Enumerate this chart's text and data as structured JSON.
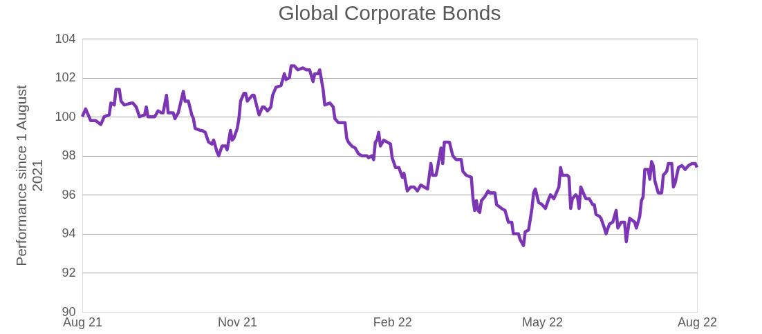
{
  "chart_data": {
    "type": "line",
    "title": "Global Corporate Bonds",
    "ylabel": "Performance since 1 August 2021",
    "x": [
      "2021-08-01",
      "2021-08-03",
      "2021-08-06",
      "2021-08-09",
      "2021-08-12",
      "2021-08-14",
      "2021-08-17",
      "2021-08-18",
      "2021-08-20",
      "2021-08-21",
      "2021-08-23",
      "2021-08-24",
      "2021-08-26",
      "2021-08-30",
      "2021-08-31",
      "2021-09-02",
      "2021-09-04",
      "2021-09-07",
      "2021-09-08",
      "2021-09-09",
      "2021-09-13",
      "2021-09-15",
      "2021-09-17",
      "2021-09-18",
      "2021-09-20",
      "2021-09-21",
      "2021-09-24",
      "2021-09-25",
      "2021-09-27",
      "2021-09-30",
      "2021-10-01",
      "2021-10-03",
      "2021-10-05",
      "2021-10-06",
      "2021-10-07",
      "2021-10-10",
      "2021-10-11",
      "2021-10-13",
      "2021-10-15",
      "2021-10-17",
      "2021-10-18",
      "2021-10-20",
      "2021-10-21",
      "2021-10-23",
      "2021-10-25",
      "2021-10-26",
      "2021-10-28",
      "2021-10-29",
      "2021-10-30",
      "2021-11-01",
      "2021-11-02",
      "2021-11-03",
      "2021-11-05",
      "2021-11-06",
      "2021-11-07",
      "2021-11-09",
      "2021-11-10",
      "2021-11-11",
      "2021-11-13",
      "2021-11-14",
      "2021-11-16",
      "2021-11-17",
      "2021-11-19",
      "2021-11-21",
      "2021-11-22",
      "2021-11-24",
      "2021-11-27",
      "2021-11-29",
      "2021-11-30",
      "2021-12-02",
      "2021-12-03",
      "2021-12-05",
      "2021-12-07",
      "2021-12-10",
      "2021-12-12",
      "2021-12-14",
      "2021-12-16",
      "2021-12-17",
      "2021-12-19",
      "2021-12-20",
      "2021-12-22",
      "2021-12-23",
      "2021-12-26",
      "2021-12-28",
      "2021-12-29",
      "2021-12-31",
      "2022-01-04",
      "2022-01-05",
      "2022-01-06",
      "2022-01-08",
      "2022-01-10",
      "2022-01-12",
      "2022-01-14",
      "2022-01-17",
      "2022-01-18",
      "2022-01-20",
      "2022-01-21",
      "2022-01-22",
      "2022-01-23",
      "2022-01-24",
      "2022-01-25",
      "2022-01-27",
      "2022-01-29",
      "2022-01-31",
      "2022-02-01",
      "2022-02-03",
      "2022-02-05",
      "2022-02-07",
      "2022-02-08",
      "2022-02-10",
      "2022-02-12",
      "2022-02-14",
      "2022-02-16",
      "2022-02-18",
      "2022-02-20",
      "2022-02-22",
      "2022-02-24",
      "2022-02-25",
      "2022-02-27",
      "2022-02-28",
      "2022-03-02",
      "2022-03-03",
      "2022-03-04",
      "2022-03-07",
      "2022-03-09",
      "2022-03-11",
      "2022-03-14",
      "2022-03-15",
      "2022-03-17",
      "2022-03-20",
      "2022-03-21",
      "2022-03-22",
      "2022-03-23",
      "2022-03-24",
      "2022-03-25",
      "2022-03-26",
      "2022-03-28",
      "2022-03-30",
      "2022-03-31",
      "2022-04-03",
      "2022-04-04",
      "2022-04-07",
      "2022-04-09",
      "2022-04-11",
      "2022-04-13",
      "2022-04-14",
      "2022-04-17",
      "2022-04-18",
      "2022-04-20",
      "2022-04-21",
      "2022-04-23",
      "2022-04-25",
      "2022-04-26",
      "2022-04-27",
      "2022-04-29",
      "2022-05-01",
      "2022-05-03",
      "2022-05-05",
      "2022-05-06",
      "2022-05-08",
      "2022-05-10",
      "2022-05-11",
      "2022-05-12",
      "2022-05-13",
      "2022-05-16",
      "2022-05-17",
      "2022-05-18",
      "2022-05-19",
      "2022-05-21",
      "2022-05-22",
      "2022-05-23",
      "2022-05-24",
      "2022-05-26",
      "2022-05-27",
      "2022-05-29",
      "2022-05-31",
      "2022-06-01",
      "2022-06-02",
      "2022-06-04",
      "2022-06-05",
      "2022-06-07",
      "2022-06-08",
      "2022-06-10",
      "2022-06-12",
      "2022-06-14",
      "2022-06-15",
      "2022-06-17",
      "2022-06-19",
      "2022-06-20",
      "2022-06-22",
      "2022-06-25",
      "2022-06-26",
      "2022-06-28",
      "2022-06-29",
      "2022-06-30",
      "2022-07-01",
      "2022-07-03",
      "2022-07-04",
      "2022-07-05",
      "2022-07-06",
      "2022-07-07",
      "2022-07-09",
      "2022-07-11",
      "2022-07-12",
      "2022-07-14",
      "2022-07-15",
      "2022-07-17",
      "2022-07-18",
      "2022-07-19",
      "2022-07-21",
      "2022-07-23",
      "2022-07-25",
      "2022-07-27",
      "2022-07-29",
      "2022-07-31",
      "2022-08-01"
    ],
    "series": [
      {
        "color": "#7b35b5",
        "values": [
          100.0,
          100.4,
          99.8,
          99.8,
          99.6,
          100.0,
          100.1,
          100.7,
          100.6,
          101.4,
          101.4,
          100.8,
          100.6,
          100.7,
          100.7,
          100.5,
          100.0,
          100.1,
          100.5,
          100.0,
          100.0,
          100.3,
          100.2,
          100.2,
          101.1,
          100.2,
          100.2,
          99.9,
          100.2,
          101.3,
          100.8,
          100.8,
          100.1,
          99.9,
          99.4,
          99.3,
          99.3,
          99.2,
          98.7,
          98.6,
          98.8,
          98.2,
          98.0,
          98.5,
          98.5,
          98.3,
          99.3,
          98.8,
          98.9,
          99.4,
          99.9,
          100.8,
          101.2,
          101.2,
          100.8,
          101.0,
          101.1,
          101.1,
          100.4,
          100.1,
          100.5,
          100.5,
          100.3,
          100.5,
          101.1,
          101.5,
          101.6,
          102.2,
          101.9,
          102.0,
          102.6,
          102.6,
          102.4,
          102.5,
          102.4,
          102.4,
          101.8,
          102.2,
          102.2,
          102.4,
          101.4,
          100.6,
          100.7,
          100.5,
          99.9,
          99.7,
          99.7,
          98.9,
          98.7,
          98.5,
          98.4,
          98.1,
          98.0,
          98.0,
          97.9,
          98.0,
          97.8,
          98.7,
          98.8,
          99.2,
          98.5,
          98.8,
          98.7,
          98.6,
          97.9,
          97.4,
          97.4,
          96.9,
          97.1,
          96.2,
          96.4,
          96.4,
          96.2,
          96.5,
          96.4,
          96.3,
          97.6,
          97.0,
          97.0,
          97.4,
          98.4,
          97.6,
          98.7,
          98.7,
          98.0,
          97.8,
          97.8,
          97.2,
          97.0,
          96.9,
          95.8,
          95.2,
          95.7,
          95.2,
          95.1,
          95.7,
          95.9,
          96.2,
          96.1,
          96.1,
          95.5,
          95.3,
          95.2,
          94.6,
          94.6,
          94.0,
          94.0,
          93.7,
          93.4,
          94.1,
          94.2,
          95.3,
          96.1,
          96.3,
          95.6,
          95.5,
          95.3,
          95.8,
          96.0,
          95.8,
          96.2,
          96.4,
          97.4,
          97.0,
          97.0,
          96.9,
          95.3,
          95.8,
          96.0,
          95.9,
          95.3,
          96.4,
          96.0,
          95.8,
          95.8,
          95.5,
          95.5,
          95.0,
          94.9,
          94.8,
          94.3,
          94.0,
          94.5,
          94.6,
          95.2,
          94.3,
          94.6,
          94.6,
          93.6,
          94.8,
          94.6,
          94.3,
          94.9,
          95.7,
          95.9,
          97.3,
          97.3,
          96.8,
          97.7,
          97.5,
          96.7,
          96.1,
          96.1,
          97.0,
          97.2,
          97.6,
          97.6,
          96.4,
          96.6,
          97.4,
          97.5,
          97.3,
          97.5,
          97.6,
          97.6,
          97.4
        ]
      }
    ],
    "xlim": [
      "2021-08-01",
      "2022-08-01"
    ],
    "xticks": [
      {
        "value": "2021-08-01",
        "label": "Aug 21"
      },
      {
        "value": "2021-11-01",
        "label": "Nov 21"
      },
      {
        "value": "2022-02-01",
        "label": "Feb 22"
      },
      {
        "value": "2022-05-01",
        "label": "May 22"
      },
      {
        "value": "2022-08-01",
        "label": "Aug 22"
      }
    ],
    "ylim": [
      90,
      104
    ],
    "yticks": [
      90,
      92,
      94,
      96,
      98,
      100,
      102,
      104
    ],
    "grid": "y",
    "marker": "none",
    "line_style": "solid"
  }
}
